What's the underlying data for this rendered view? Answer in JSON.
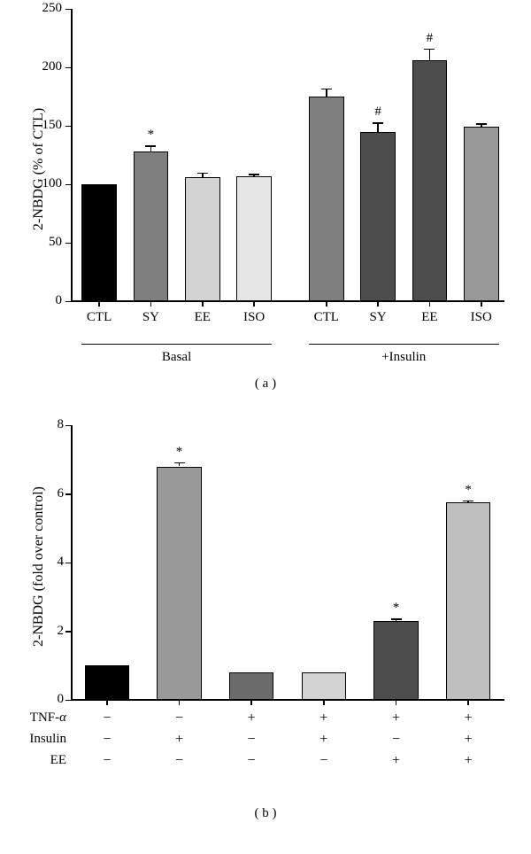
{
  "panel_a": {
    "type": "bar",
    "ylabel": "2-NBDG (% of CTL)",
    "ylim": [
      0,
      250
    ],
    "ytick_step": 50,
    "yticks": [
      0,
      50,
      100,
      150,
      200,
      250
    ],
    "categories": [
      "CTL",
      "SY",
      "EE",
      "ISO",
      "CTL",
      "SY",
      "EE",
      "ISO"
    ],
    "groups": [
      {
        "label": "Basal",
        "start": 0,
        "end": 3
      },
      {
        "label": "+Insulin",
        "start": 4,
        "end": 7
      }
    ],
    "bars": [
      {
        "value": 100,
        "err": 0,
        "color": "#000000",
        "sig": ""
      },
      {
        "value": 128,
        "err": 5,
        "color": "#7f7f7f",
        "sig": "*"
      },
      {
        "value": 106,
        "err": 4,
        "color": "#d3d3d3",
        "sig": ""
      },
      {
        "value": 107,
        "err": 2,
        "color": "#e6e6e6",
        "sig": ""
      },
      {
        "value": 175,
        "err": 7,
        "color": "#7f7f7f",
        "sig": ""
      },
      {
        "value": 145,
        "err": 8,
        "color": "#4d4d4d",
        "sig": "#"
      },
      {
        "value": 206,
        "err": 10,
        "color": "#4d4d4d",
        "sig": "#"
      },
      {
        "value": 149,
        "err": 3,
        "color": "#999999",
        "sig": ""
      }
    ],
    "label_fontsize": 15,
    "bar_width": 0.68,
    "gap_between_groups": 0.4,
    "panel_tag": "( a )"
  },
  "panel_b": {
    "type": "bar",
    "ylabel": "2-NBDG (fold over control)",
    "ylim": [
      0,
      8
    ],
    "ytick_step": 2,
    "yticks": [
      0,
      2,
      4,
      6,
      8
    ],
    "bars": [
      {
        "value": 1.0,
        "err": 0,
        "color": "#000000",
        "sig": ""
      },
      {
        "value": 6.8,
        "err": 0.12,
        "color": "#999999",
        "sig": "*"
      },
      {
        "value": 0.8,
        "err": 0,
        "color": "#6b6b6b",
        "sig": ""
      },
      {
        "value": 0.8,
        "err": 0,
        "color": "#d3d3d3",
        "sig": ""
      },
      {
        "value": 2.3,
        "err": 0.07,
        "color": "#4d4d4d",
        "sig": "*"
      },
      {
        "value": 5.75,
        "err": 0.06,
        "color": "#bfbfbf",
        "sig": "*"
      }
    ],
    "factor_rows": [
      {
        "label": "TNF-α",
        "levels": [
          "−",
          "−",
          "+",
          "+",
          "+",
          "+"
        ]
      },
      {
        "label": "Insulin",
        "levels": [
          "−",
          "+",
          "−",
          "+",
          "−",
          "+"
        ]
      },
      {
        "label": "EE",
        "levels": [
          "−",
          "−",
          "−",
          "−",
          "+",
          "+"
        ]
      }
    ],
    "panel_tag": "( b )"
  },
  "colors": {
    "axis": "#000000",
    "background": "#ffffff"
  }
}
